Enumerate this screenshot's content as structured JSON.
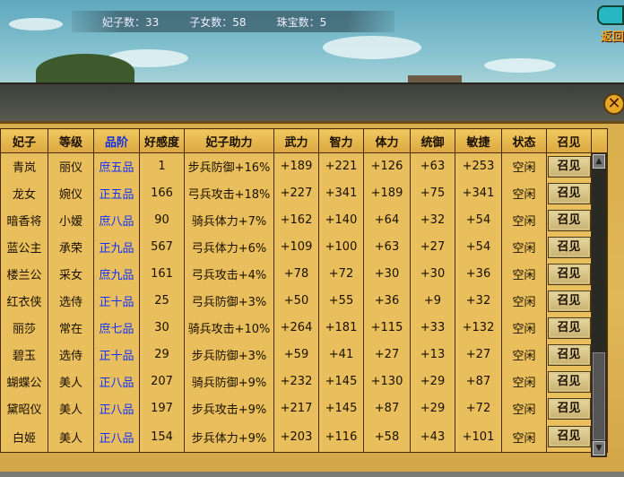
{
  "stats": {
    "consorts": "妃子数：33",
    "children": "子女数：58",
    "treasures": "珠宝数：5"
  },
  "back_label": "返回",
  "close_icon": "close-x-icon",
  "colors": {
    "rank_text": "#1030ff",
    "header_bg": "#dca840",
    "panel_bg": "#e0b858"
  },
  "table": {
    "headers": [
      "妃子",
      "等级",
      "品阶",
      "好感度",
      "妃子助力",
      "武力",
      "智力",
      "体力",
      "统御",
      "敏捷",
      "状态",
      "召见"
    ],
    "rows": [
      [
        "青岚",
        "丽仪",
        "庶五品",
        "1",
        "步兵防御+16%",
        "+189",
        "+221",
        "+126",
        "+63",
        "+253",
        "空闲",
        "召见"
      ],
      [
        "龙女",
        "婉仪",
        "正五品",
        "166",
        "弓兵攻击+18%",
        "+227",
        "+341",
        "+189",
        "+75",
        "+341",
        "空闲",
        "召见"
      ],
      [
        "暗香将",
        "小嫒",
        "庶八品",
        "90",
        "骑兵体力+7%",
        "+162",
        "+140",
        "+64",
        "+32",
        "+54",
        "空闲",
        "召见"
      ],
      [
        "蓝公主",
        "承荣",
        "正九品",
        "567",
        "弓兵体力+6%",
        "+109",
        "+100",
        "+63",
        "+27",
        "+54",
        "空闲",
        "召见"
      ],
      [
        "楼兰公",
        "采女",
        "庶九品",
        "161",
        "弓兵攻击+4%",
        "+78",
        "+72",
        "+30",
        "+30",
        "+36",
        "空闲",
        "召见"
      ],
      [
        "红衣侠",
        "选侍",
        "正十品",
        "25",
        "弓兵防御+3%",
        "+50",
        "+55",
        "+36",
        "+9",
        "+32",
        "空闲",
        "召见"
      ],
      [
        "丽莎",
        "常在",
        "庶七品",
        "30",
        "骑兵攻击+10%",
        "+264",
        "+181",
        "+115",
        "+33",
        "+132",
        "空闲",
        "召见"
      ],
      [
        "碧玉",
        "选侍",
        "正十品",
        "29",
        "步兵防御+3%",
        "+59",
        "+41",
        "+27",
        "+13",
        "+27",
        "空闲",
        "召见"
      ],
      [
        "蝴蝶公",
        "美人",
        "正八品",
        "207",
        "骑兵防御+9%",
        "+232",
        "+145",
        "+130",
        "+29",
        "+87",
        "空闲",
        "召见"
      ],
      [
        "黛昭仪",
        "美人",
        "正八品",
        "197",
        "步兵攻击+9%",
        "+217",
        "+145",
        "+87",
        "+29",
        "+72",
        "空闲",
        "召见"
      ],
      [
        "白姬",
        "美人",
        "正八品",
        "154",
        "步兵体力+9%",
        "+203",
        "+116",
        "+58",
        "+43",
        "+101",
        "空闲",
        "召见"
      ]
    ]
  }
}
